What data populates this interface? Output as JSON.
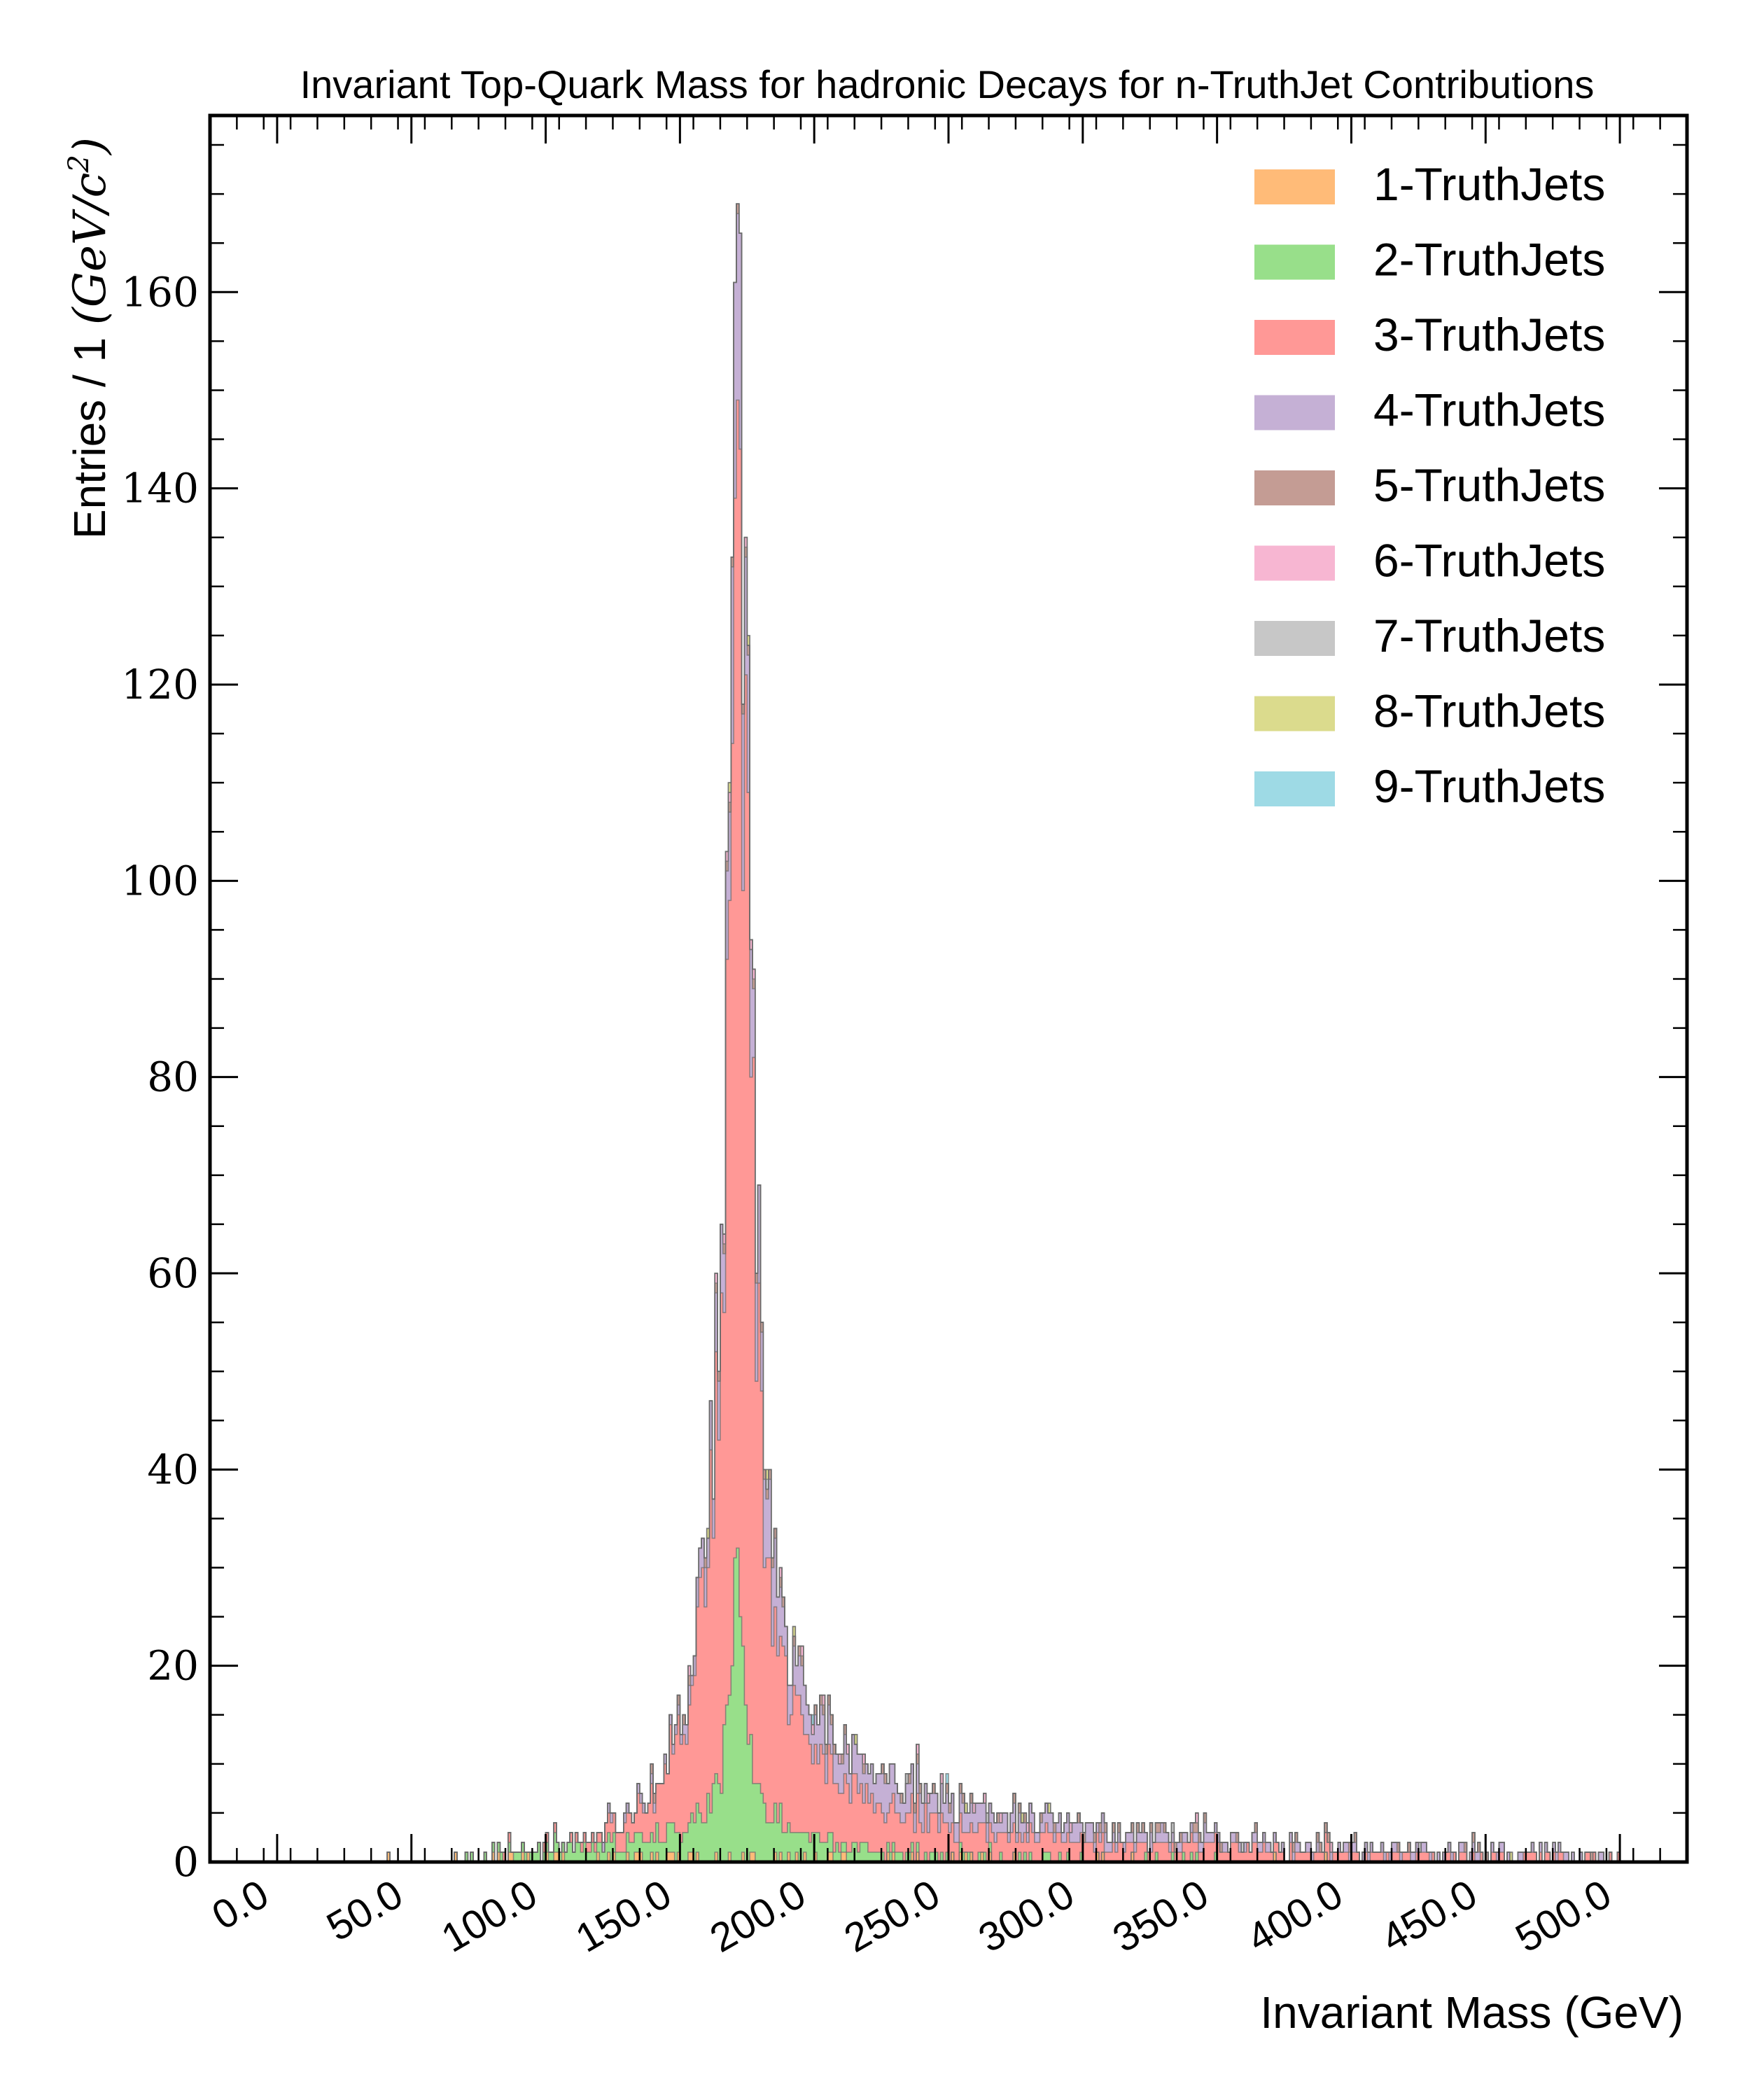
{
  "chart_data": {
    "type": "bar",
    "histtype": "stacked-step-filled",
    "title": "Invariant Top-Quark Mass for hadronic Decays for n-TruthJet Contributions",
    "xlabel": "Invariant Mass (GeV)",
    "ylabel_prefix": "Entries / 1 ",
    "ylabel_unit": "(GeV/c",
    "ylabel_sup": "2",
    "ylabel_close": ")",
    "xlim": [
      -25,
      525
    ],
    "ylim": [
      0,
      178
    ],
    "bin_width": 1,
    "xticks": [
      0,
      50,
      100,
      150,
      200,
      250,
      300,
      350,
      400,
      450,
      500
    ],
    "xtick_labels": [
      "0.0",
      "50.0",
      "100.0",
      "150.0",
      "200.0",
      "250.0",
      "300.0",
      "350.0",
      "400.0",
      "450.0",
      "500.0"
    ],
    "yticks": [
      0,
      20,
      40,
      60,
      80,
      100,
      120,
      140,
      160
    ],
    "ytick_labels": [
      "0",
      "20",
      "40",
      "60",
      "80",
      "100",
      "120",
      "140",
      "160"
    ],
    "legend_position": "top-right",
    "peak": {
      "x": 171,
      "value": 169
    },
    "series": [
      {
        "name": "1-TruthJets",
        "color": "#ffbb78",
        "profile": [
          [
            30,
            0
          ],
          [
            60,
            0.2
          ],
          [
            100,
            0.3
          ],
          [
            150,
            0.4
          ],
          [
            172,
            0.5
          ],
          [
            200,
            0.3
          ],
          [
            300,
            0.1
          ],
          [
            500,
            0
          ]
        ]
      },
      {
        "name": "2-TruthJets",
        "color": "#98df8a",
        "profile": [
          [
            60,
            0
          ],
          [
            90,
            1
          ],
          [
            120,
            1.2
          ],
          [
            150,
            2.5
          ],
          [
            165,
            7
          ],
          [
            171,
            28
          ],
          [
            177,
            8
          ],
          [
            190,
            3
          ],
          [
            220,
            1
          ],
          [
            260,
            0.4
          ],
          [
            400,
            0
          ]
        ]
      },
      {
        "name": "3-TruthJets",
        "color": "#ff9896",
        "profile": [
          [
            80,
            0
          ],
          [
            120,
            1
          ],
          [
            140,
            4
          ],
          [
            155,
            13
          ],
          [
            162,
            30
          ],
          [
            167,
            60
          ],
          [
            170,
            100
          ],
          [
            171,
            122
          ],
          [
            173,
            105
          ],
          [
            176,
            70
          ],
          [
            181,
            30
          ],
          [
            190,
            13
          ],
          [
            210,
            6
          ],
          [
            250,
            3
          ],
          [
            300,
            1.8
          ],
          [
            400,
            1
          ],
          [
            500,
            0.5
          ]
        ]
      },
      {
        "name": "4-TruthJets",
        "color": "#c5b0d5",
        "profile": [
          [
            100,
            0
          ],
          [
            150,
            0.8
          ],
          [
            165,
            5
          ],
          [
            170,
            16
          ],
          [
            172,
            20
          ],
          [
            176,
            10
          ],
          [
            190,
            4
          ],
          [
            220,
            3
          ],
          [
            260,
            2
          ],
          [
            300,
            1.2
          ],
          [
            400,
            0.8
          ],
          [
            500,
            0.4
          ]
        ]
      },
      {
        "name": "5-TruthJets",
        "color": "#c49c94",
        "profile": [
          [
            120,
            0
          ],
          [
            160,
            0.3
          ],
          [
            171,
            1
          ],
          [
            200,
            0.5
          ],
          [
            300,
            0.3
          ],
          [
            500,
            0.1
          ]
        ]
      },
      {
        "name": "6-TruthJets",
        "color": "#f7b6d2",
        "profile": [
          [
            150,
            0
          ],
          [
            171,
            0.2
          ],
          [
            300,
            0.1
          ],
          [
            500,
            0
          ]
        ]
      },
      {
        "name": "7-TruthJets",
        "color": "#c7c7c7",
        "profile": [
          [
            150,
            0
          ],
          [
            171,
            0.1
          ],
          [
            500,
            0
          ]
        ]
      },
      {
        "name": "8-TruthJets",
        "color": "#dbdb8d",
        "profile": [
          [
            150,
            0
          ],
          [
            171,
            0.05
          ],
          [
            500,
            0
          ]
        ]
      },
      {
        "name": "9-TruthJets",
        "color": "#9edae5",
        "profile": [
          [
            150,
            0
          ],
          [
            171,
            0.02
          ],
          [
            500,
            0
          ]
        ]
      }
    ]
  }
}
